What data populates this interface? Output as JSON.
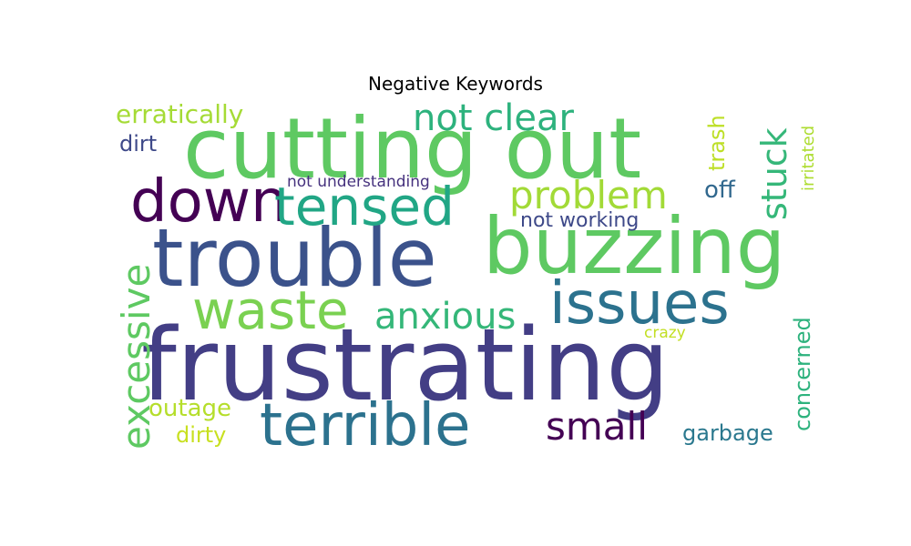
{
  "title": "Negative Keywords",
  "words": [
    {
      "text": "frustrating",
      "color": "#433e85"
    },
    {
      "text": "cutting out",
      "color": "#5ec962"
    },
    {
      "text": "trouble",
      "color": "#3b528b"
    },
    {
      "text": "buzzing",
      "color": "#5ec962"
    },
    {
      "text": "terrible",
      "color": "#2c728e"
    },
    {
      "text": "down",
      "color": "#440154"
    },
    {
      "text": "tensed",
      "color": "#21a685"
    },
    {
      "text": "issues",
      "color": "#2c728e"
    },
    {
      "text": "waste",
      "color": "#7ad151"
    },
    {
      "text": "problem",
      "color": "#a2da37"
    },
    {
      "text": "not clear",
      "color": "#2db27d"
    },
    {
      "text": "anxious",
      "color": "#35b779"
    },
    {
      "text": "excessive",
      "color": "#5ec962"
    },
    {
      "text": "stuck",
      "color": "#35b779"
    },
    {
      "text": "small",
      "color": "#440154"
    },
    {
      "text": "erratically",
      "color": "#a5db36"
    },
    {
      "text": "not working",
      "color": "#3e4989"
    },
    {
      "text": "off",
      "color": "#31688e"
    },
    {
      "text": "trash",
      "color": "#bddf26"
    },
    {
      "text": "concerned",
      "color": "#2db27d"
    },
    {
      "text": "garbage",
      "color": "#2a788e"
    },
    {
      "text": "outage",
      "color": "#b5de2b"
    },
    {
      "text": "dirty",
      "color": "#c8e020"
    },
    {
      "text": "dirt",
      "color": "#3e4989"
    },
    {
      "text": "not understanding",
      "color": "#46327e"
    },
    {
      "text": "irritated",
      "color": "#addc30"
    },
    {
      "text": "crazy",
      "color": "#c2df23"
    }
  ]
}
